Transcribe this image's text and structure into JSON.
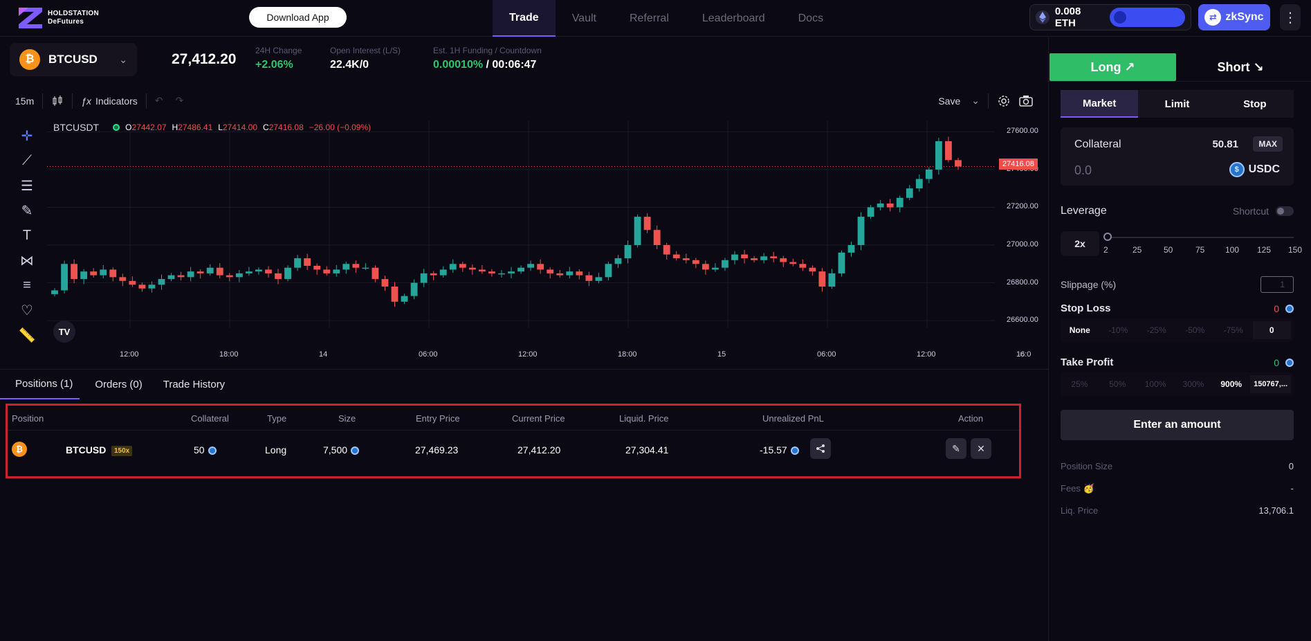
{
  "header": {
    "logo_line1": "HOLDSTATION",
    "logo_line2": "DeFutures",
    "download_label": "Download App",
    "nav": [
      {
        "label": "Trade",
        "active": true
      },
      {
        "label": "Vault"
      },
      {
        "label": "Referral"
      },
      {
        "label": "Leaderboard"
      },
      {
        "label": "Docs"
      }
    ],
    "eth_balance": "0.008 ETH",
    "network_label": "zkSync",
    "more_icon": "vertical-ellipsis-icon"
  },
  "ticker": {
    "pair": "BTCUSD",
    "price": "27,412.20",
    "change_label": "24H Change",
    "change_value": "+2.06%",
    "oi_label": "Open Interest (L/S)",
    "oi_value": "22.4K/0",
    "funding_label": "Est. 1H Funding / Countdown",
    "funding_value": "0.00010%",
    "countdown": "/ 00:06:47"
  },
  "chart_toolbar": {
    "interval": "15m",
    "indicators_label": "Indicators",
    "save_label": "Save"
  },
  "chart_data": {
    "type": "candlestick",
    "symbol": "BTCUSDT",
    "ohlc_label": {
      "o": "27442.07",
      "h": "27486.41",
      "l": "27414.00",
      "c": "27416.08",
      "change": "−26.00 (−0.09%)"
    },
    "last_price_tag": "27416.08",
    "y_ticks": [
      "27600.00",
      "27400.00",
      "27200.00",
      "27000.00",
      "26800.00",
      "26600.00"
    ],
    "x_ticks": [
      "12:00",
      "18:00",
      "14",
      "06:00",
      "12:00",
      "18:00",
      "15",
      "06:00",
      "12:00",
      "16:0"
    ],
    "ylim": [
      26560,
      27660
    ],
    "closes": [
      26760,
      26900,
      26820,
      26860,
      26840,
      26870,
      26830,
      26810,
      26790,
      26770,
      26790,
      26820,
      26840,
      26830,
      26860,
      26850,
      26880,
      26840,
      26830,
      26850,
      26860,
      26870,
      26850,
      26820,
      26880,
      26930,
      26890,
      26870,
      26850,
      26870,
      26900,
      26880,
      26880,
      26820,
      26780,
      26700,
      26730,
      26800,
      26850,
      26840,
      26870,
      26900,
      26880,
      26870,
      26860,
      26850,
      26850,
      26860,
      26880,
      26900,
      26870,
      26850,
      26840,
      26860,
      26840,
      26810,
      26830,
      26900,
      26930,
      27000,
      27150,
      27080,
      27000,
      26950,
      26930,
      26920,
      26900,
      26870,
      26880,
      26920,
      26950,
      26930,
      26920,
      26940,
      26930,
      26910,
      26900,
      26880,
      26860,
      26780,
      26850,
      26960,
      27000,
      27150,
      27200,
      27220,
      27200,
      27250,
      27300,
      27350,
      27400,
      27550,
      27450,
      27416
    ]
  },
  "tabs": [
    "Positions (1)",
    "Orders (0)",
    "Trade History"
  ],
  "positions": {
    "headers": [
      "Position",
      "Collateral",
      "Type",
      "Size",
      "Entry Price",
      "Current Price",
      "Liquid. Price",
      "Unrealized PnL",
      "Action"
    ],
    "rows": [
      {
        "pair": "BTCUSD",
        "leverage": "150x",
        "collateral": "50",
        "type": "Long",
        "size": "7,500",
        "entry": "27,469.23",
        "current": "27,412.20",
        "liquid": "27,304.41",
        "pnl": "-15.57"
      }
    ]
  },
  "order_panel": {
    "long_label": "Long ↗",
    "short_label": "Short ↘",
    "order_types": [
      "Market",
      "Limit",
      "Stop"
    ],
    "collateral_label": "Collateral",
    "collateral_balance": "50.81",
    "max_label": "MAX",
    "amount_placeholder": "0.0",
    "token": "USDC",
    "leverage_label": "Leverage",
    "shortcut_label": "Shortcut",
    "leverage_value": "2x",
    "leverage_marks": [
      "2",
      "25",
      "50",
      "75",
      "100",
      "125",
      "150"
    ],
    "slippage_label": "Slippage (%)",
    "slippage_placeholder": "1",
    "stop_loss_label": "Stop Loss",
    "stop_loss_value": "0",
    "sl_options": [
      "None",
      "-10%",
      "-25%",
      "-50%",
      "-75%"
    ],
    "sl_input": "0",
    "take_profit_label": "Take Profit",
    "take_profit_value": "0",
    "tp_options": [
      "25%",
      "50%",
      "100%",
      "300%",
      "900%"
    ],
    "tp_input": "150767,...",
    "enter_label": "Enter an amount",
    "position_size_label": "Position Size",
    "position_size_value": "0",
    "fees_label": "Fees",
    "fees_value": "-",
    "liq_label": "Liq. Price",
    "liq_value": "13,706.1"
  }
}
